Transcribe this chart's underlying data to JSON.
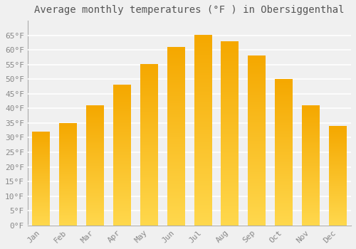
{
  "title": "Average monthly temperatures (°F ) in Obersiggenthal",
  "months": [
    "Jan",
    "Feb",
    "Mar",
    "Apr",
    "May",
    "Jun",
    "Jul",
    "Aug",
    "Sep",
    "Oct",
    "Nov",
    "Dec"
  ],
  "values": [
    32,
    35,
    41,
    48,
    55,
    61,
    65,
    63,
    58,
    50,
    41,
    34
  ],
  "bar_color_bottom": "#FFD84D",
  "bar_color_top": "#F5A800",
  "ylim": [
    0,
    70
  ],
  "yticks": [
    0,
    5,
    10,
    15,
    20,
    25,
    30,
    35,
    40,
    45,
    50,
    55,
    60,
    65
  ],
  "ytick_labels": [
    "0°F",
    "5°F",
    "10°F",
    "15°F",
    "20°F",
    "25°F",
    "30°F",
    "35°F",
    "40°F",
    "45°F",
    "50°F",
    "55°F",
    "60°F",
    "65°F"
  ],
  "background_color": "#F0F0F0",
  "grid_color": "#FFFFFF",
  "title_fontsize": 10,
  "tick_fontsize": 8,
  "bar_width": 0.65
}
